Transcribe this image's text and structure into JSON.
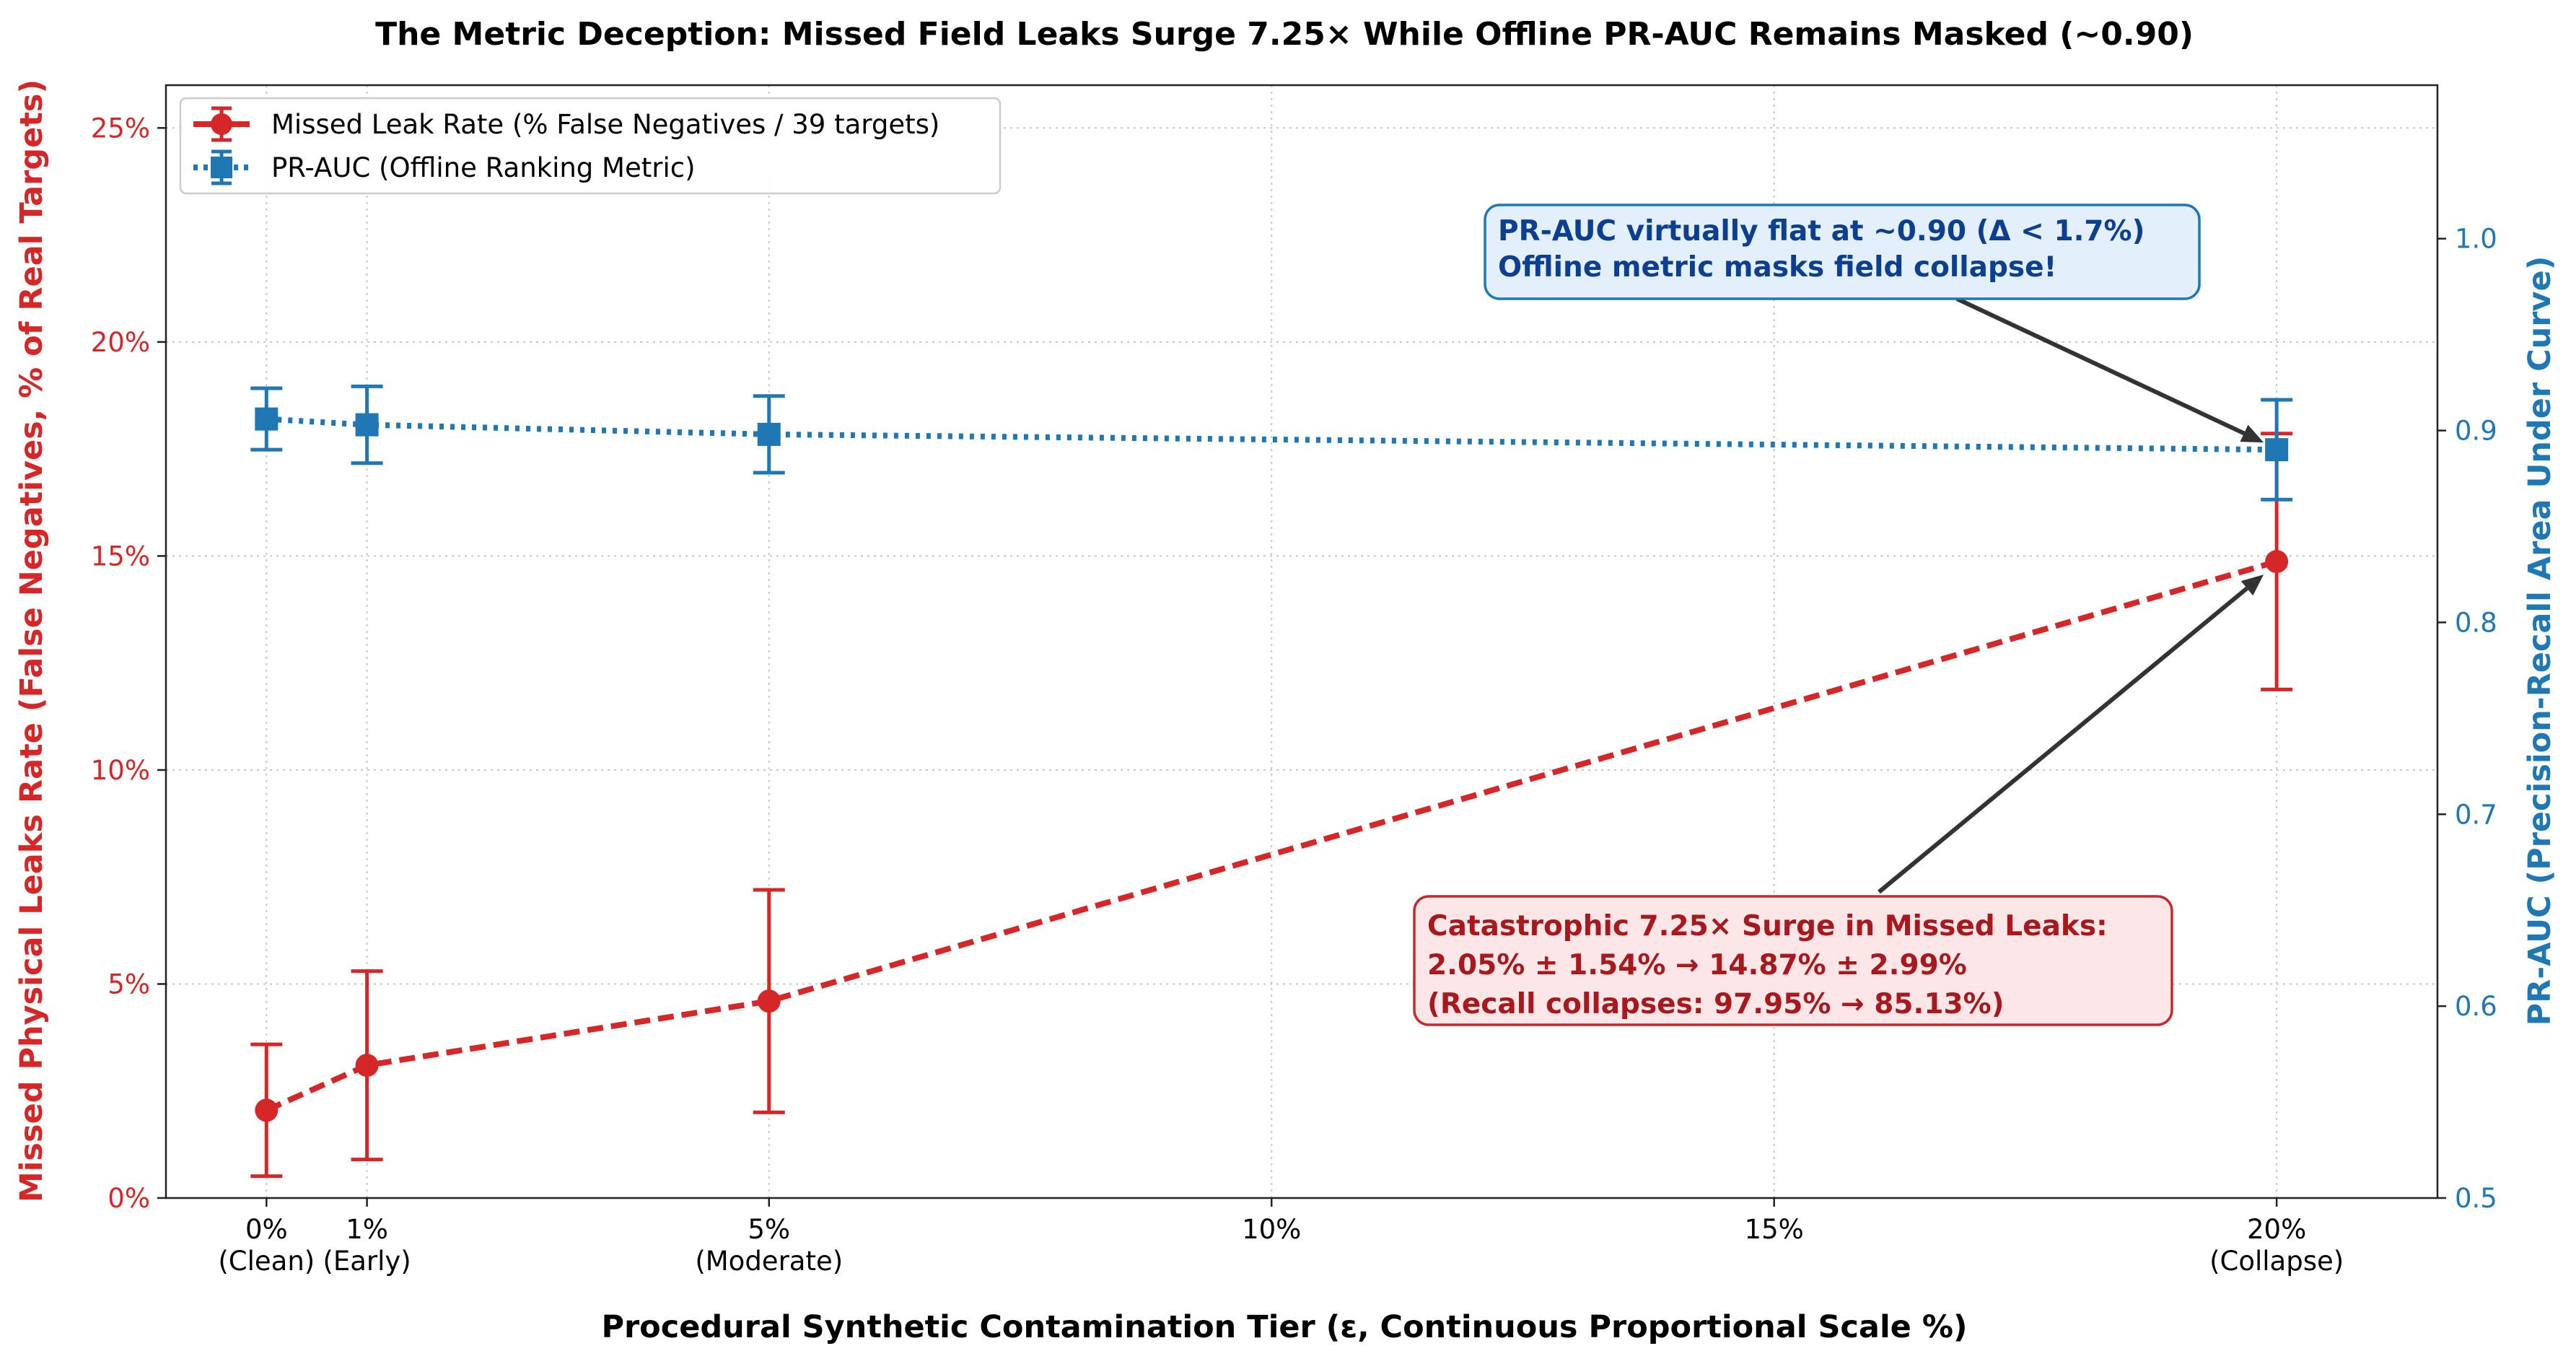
{
  "chart_data": {
    "type": "line",
    "title": "The Metric Deception: Missed Field Leaks Surge 7.25× While Offline PR-AUC Remains Masked (~0.90)",
    "xlabel": "Procedural Synthetic Contamination Tier (ε, Continuous Proportional Scale %)",
    "ylabel_left": "Missed Physical Leaks Rate (False Negatives, % of Real Targets)",
    "ylabel_right": "PR-AUC (Precision-Recall Area Under Curve)",
    "xlim": [
      -1.0,
      21.6
    ],
    "ylim_left": [
      0,
      26
    ],
    "ylim_right": [
      0.5,
      1.08
    ],
    "grid": true,
    "legend_position": "top-left",
    "x_ticks": [
      {
        "value": 0,
        "label": "0%",
        "sublabel": "(Clean)"
      },
      {
        "value": 1,
        "label": "1%",
        "sublabel": "(Early)"
      },
      {
        "value": 5,
        "label": "5%",
        "sublabel": "(Moderate)"
      },
      {
        "value": 10,
        "label": "10%",
        "sublabel": ""
      },
      {
        "value": 15,
        "label": "15%",
        "sublabel": ""
      },
      {
        "value": 20,
        "label": "20%",
        "sublabel": "(Collapse)"
      }
    ],
    "y_ticks_left": [
      {
        "value": 0,
        "label": "0%"
      },
      {
        "value": 5,
        "label": "5%"
      },
      {
        "value": 10,
        "label": "10%"
      },
      {
        "value": 15,
        "label": "15%"
      },
      {
        "value": 20,
        "label": "20%"
      },
      {
        "value": 25,
        "label": "25%"
      }
    ],
    "y_ticks_right": [
      {
        "value": 0.5,
        "label": "0.5"
      },
      {
        "value": 0.6,
        "label": "0.6"
      },
      {
        "value": 0.7,
        "label": "0.7"
      },
      {
        "value": 0.8,
        "label": "0.8"
      },
      {
        "value": 0.9,
        "label": "0.9"
      },
      {
        "value": 1.0,
        "label": "1.0"
      }
    ],
    "series": [
      {
        "name": "Missed Leak Rate (% False Negatives / 39 targets)",
        "axis": "left",
        "color": "#d62728",
        "marker": "circle",
        "linestyle": "dashed",
        "x": [
          0,
          1,
          5,
          20
        ],
        "values": [
          2.05,
          3.1,
          4.6,
          14.87
        ],
        "error": [
          1.54,
          2.2,
          2.6,
          2.99
        ]
      },
      {
        "name": "PR-AUC (Offline Ranking Metric)",
        "axis": "right",
        "color": "#1f77b4",
        "marker": "square",
        "linestyle": "dotted",
        "x": [
          0,
          1,
          5,
          20
        ],
        "values": [
          0.906,
          0.903,
          0.898,
          0.89
        ],
        "error": [
          0.016,
          0.02,
          0.02,
          0.026
        ]
      }
    ],
    "annotations": [
      {
        "name": "pr-auc-annotation",
        "lines": [
          "PR-AUC virtually flat at ~0.90 (Δ < 1.7%)",
          "Offline metric masks field collapse!"
        ],
        "text_color": "#0d3f91",
        "box_fill": "#e3f0fb",
        "box_edge": "#1f77b4",
        "target_series": 1,
        "target_point": 3
      },
      {
        "name": "missed-leak-annotation",
        "lines": [
          "Catastrophic 7.25× Surge in Missed Leaks:",
          "2.05% ± 1.54% → 14.87% ± 2.99%",
          "(Recall collapses: 97.95% → 85.13%)"
        ],
        "text_color": "#a8191e",
        "box_fill": "#fde6e7",
        "box_edge": "#c8282d",
        "target_series": 0,
        "target_point": 3
      }
    ]
  }
}
